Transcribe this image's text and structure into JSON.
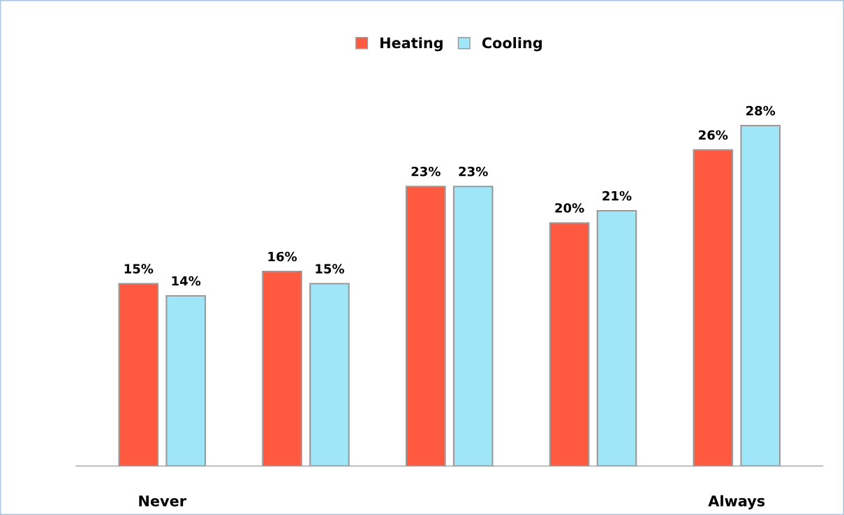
{
  "chart_data": {
    "type": "bar",
    "categories": [
      "Never",
      null,
      null,
      null,
      "Always"
    ],
    "series": [
      {
        "name": "Heating",
        "color": "#ff5a40",
        "values": [
          15,
          16,
          23,
          20,
          26
        ],
        "value_labels": [
          "15%",
          "16%",
          "23%",
          "20%",
          "26%"
        ]
      },
      {
        "name": "Cooling",
        "color": "#9fe6f8",
        "values": [
          14,
          15,
          23,
          21,
          28
        ],
        "value_labels": [
          "14%",
          "15%",
          "23%",
          "21%",
          "28%"
        ]
      }
    ],
    "legend": "top",
    "grid": false
  }
}
